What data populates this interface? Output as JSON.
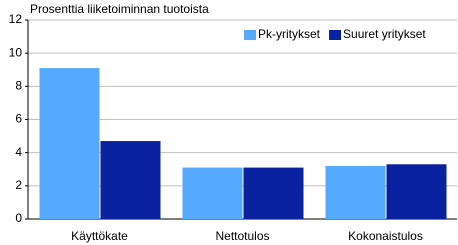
{
  "chart_data": {
    "type": "bar",
    "title": "Prosenttia liiketoiminnan tuotoista",
    "categories": [
      "Käyttökate",
      "Nettotulos",
      "Kokonaistulos"
    ],
    "series": [
      {
        "name": "Pk-yritykset",
        "color": "#55aaff",
        "values": [
          9.1,
          3.1,
          3.2
        ]
      },
      {
        "name": "Suuret yritykset",
        "color": "#0a22a0",
        "values": [
          4.7,
          3.1,
          3.3
        ]
      }
    ],
    "ylim": [
      0,
      12
    ],
    "yticks": [
      0,
      2,
      4,
      6,
      8,
      10,
      12
    ],
    "grid": true,
    "legend": "top-right"
  }
}
